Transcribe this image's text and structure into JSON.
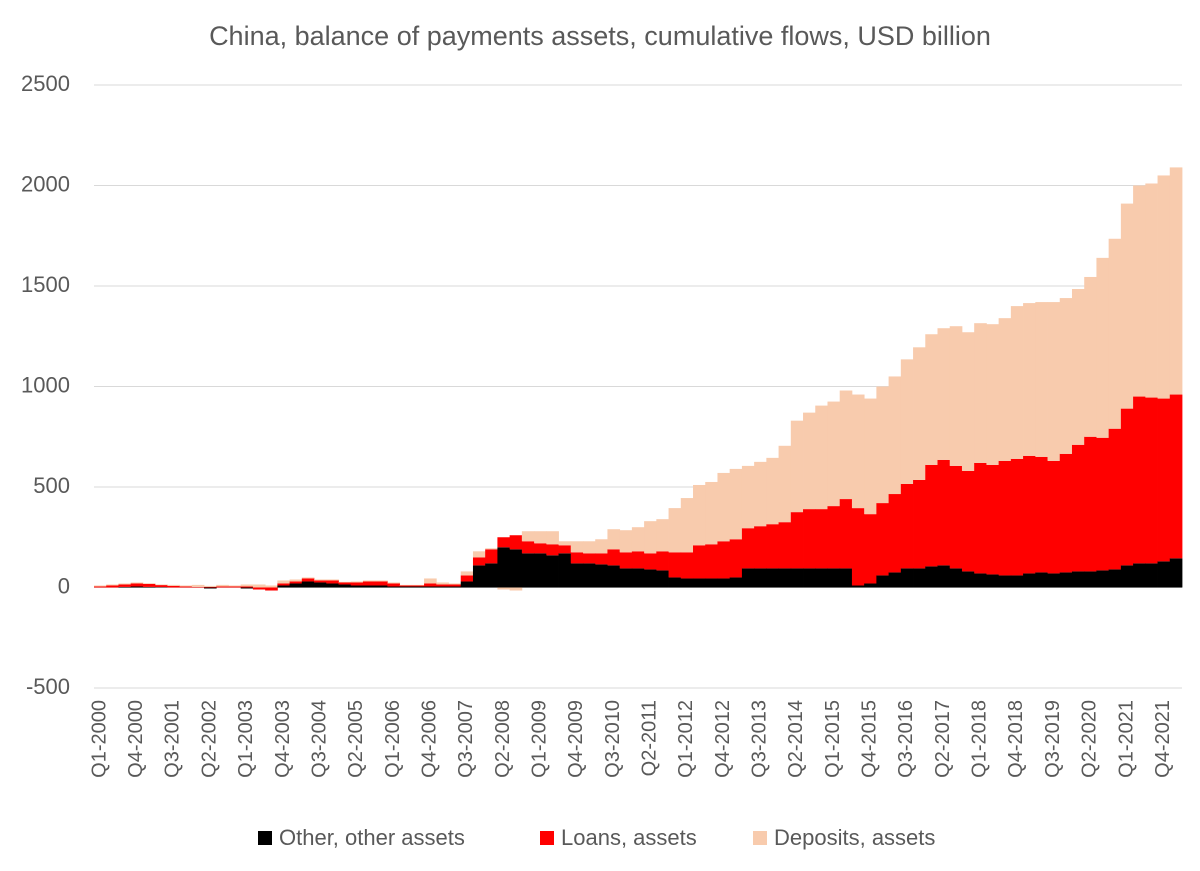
{
  "chart_data": {
    "type": "stacked_bar",
    "title": "China, balance of payments assets, cumulative flows, USD billion",
    "categories": [
      "Q1-2000",
      null,
      null,
      "Q4-2000",
      null,
      null,
      "Q3-2001",
      null,
      null,
      "Q2-2002",
      null,
      null,
      "Q1-2003",
      null,
      null,
      "Q4-2003",
      null,
      null,
      "Q3-2004",
      null,
      null,
      "Q2-2005",
      null,
      null,
      "Q1-2006",
      null,
      null,
      "Q4-2006",
      null,
      null,
      "Q3-2007",
      null,
      null,
      "Q2-2008",
      null,
      null,
      "Q1-2009",
      null,
      null,
      "Q4-2009",
      null,
      null,
      "Q3-2010",
      null,
      null,
      "Q2-2011",
      null,
      null,
      "Q1-2012",
      null,
      null,
      "Q4-2012",
      null,
      null,
      "Q3-2013",
      null,
      null,
      "Q2-2014",
      null,
      null,
      "Q1-2015",
      null,
      null,
      "Q4-2015",
      null,
      null,
      "Q3-2016",
      null,
      null,
      "Q2-2017",
      null,
      null,
      "Q1-2018",
      null,
      null,
      "Q4-2018",
      null,
      null,
      "Q3-2019",
      null,
      null,
      "Q2-2020",
      null,
      null,
      "Q1-2021",
      null,
      null,
      "Q4-2021",
      null
    ],
    "series": [
      {
        "name": "Other, other assets",
        "color": "#000000",
        "values": [
          0,
          0,
          3,
          5,
          3,
          2,
          0,
          0,
          0,
          -5,
          0,
          0,
          -5,
          0,
          0,
          10,
          20,
          30,
          25,
          20,
          15,
          10,
          10,
          10,
          5,
          5,
          5,
          5,
          5,
          5,
          30,
          110,
          120,
          200,
          190,
          170,
          170,
          160,
          170,
          120,
          120,
          115,
          110,
          95,
          95,
          90,
          85,
          50,
          45,
          45,
          45,
          45,
          50,
          95,
          95,
          95,
          95,
          95,
          95,
          95,
          95,
          95,
          10,
          20,
          60,
          75,
          95,
          95,
          105,
          110,
          95,
          80,
          70,
          65,
          60,
          60,
          70,
          75,
          70,
          75,
          80,
          80,
          85,
          90,
          110,
          120,
          120,
          130,
          145
        ]
      },
      {
        "name": "Loans, assets",
        "color": "#ff0000",
        "values": [
          5,
          10,
          12,
          15,
          15,
          10,
          8,
          5,
          3,
          3,
          5,
          5,
          5,
          -10,
          -15,
          10,
          10,
          15,
          10,
          15,
          10,
          15,
          20,
          20,
          15,
          5,
          5,
          15,
          10,
          10,
          30,
          40,
          70,
          50,
          70,
          60,
          50,
          55,
          40,
          55,
          50,
          55,
          80,
          80,
          85,
          80,
          95,
          125,
          130,
          165,
          170,
          185,
          190,
          200,
          210,
          220,
          230,
          280,
          295,
          295,
          310,
          345,
          385,
          345,
          360,
          390,
          420,
          440,
          505,
          525,
          510,
          500,
          550,
          545,
          570,
          580,
          585,
          575,
          560,
          590,
          630,
          670,
          660,
          700,
          780,
          830,
          825,
          810,
          815
        ]
      },
      {
        "name": "Deposits, assets",
        "color": "#f8cbad",
        "values": [
          5,
          5,
          5,
          5,
          3,
          3,
          5,
          5,
          10,
          5,
          8,
          5,
          10,
          15,
          10,
          15,
          10,
          5,
          5,
          5,
          3,
          5,
          5,
          5,
          5,
          3,
          3,
          25,
          10,
          5,
          20,
          30,
          5,
          -10,
          -15,
          50,
          60,
          65,
          20,
          55,
          60,
          70,
          100,
          110,
          120,
          160,
          160,
          220,
          270,
          300,
          310,
          340,
          350,
          310,
          320,
          330,
          380,
          455,
          480,
          515,
          520,
          540,
          565,
          575,
          580,
          585,
          620,
          660,
          650,
          655,
          695,
          690,
          695,
          700,
          710,
          760,
          760,
          770,
          790,
          775,
          775,
          795,
          895,
          945,
          1020,
          1050,
          1065,
          1110,
          1130
        ]
      }
    ],
    "ylim": [
      -500,
      2500
    ],
    "yticks": [
      -500,
      0,
      500,
      1000,
      1500,
      2000,
      2500
    ],
    "grid": true,
    "legend": "bottom"
  }
}
